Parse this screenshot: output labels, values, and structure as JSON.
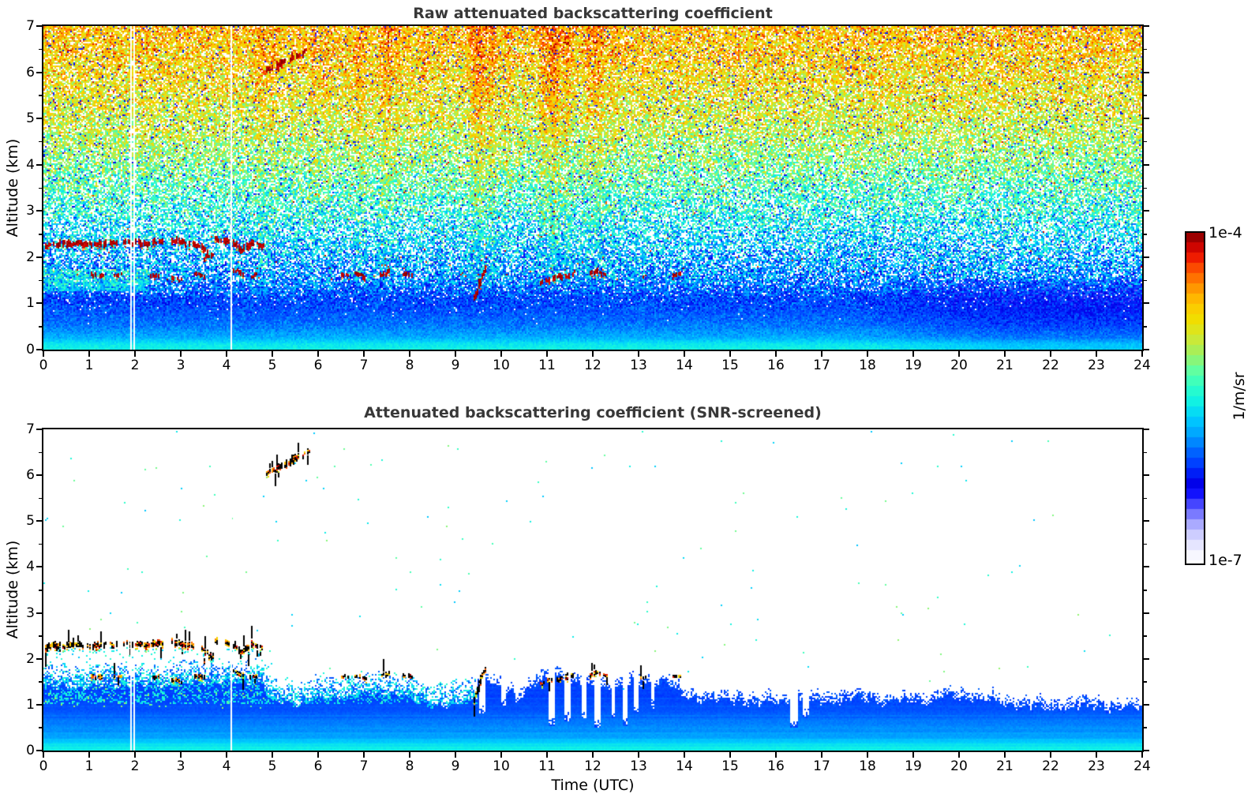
{
  "figure": {
    "title_color": "#383838",
    "axis_color": "#000000",
    "background": "#ffffff"
  },
  "panels": [
    {
      "id": "raw",
      "title": "Raw attenuated backscattering coefficient",
      "screened": false
    },
    {
      "id": "screened",
      "title": "Attenuated backscattering coefficient (SNR-screened)",
      "screened": true
    }
  ],
  "axes": {
    "x": {
      "label": "Time (UTC)",
      "min": 0,
      "max": 24,
      "tick_labels": [
        "0",
        "1",
        "2",
        "3",
        "4",
        "5",
        "6",
        "7",
        "8",
        "9",
        "10",
        "11",
        "12",
        "13",
        "14",
        "15",
        "16",
        "17",
        "18",
        "19",
        "20",
        "21",
        "22",
        "23",
        "24"
      ]
    },
    "y": {
      "label": "Altitude (km)",
      "min": 0,
      "max": 7,
      "tick_labels": [
        "0",
        "1",
        "2",
        "3",
        "4",
        "5",
        "6",
        "7"
      ],
      "minor_step": 0.5
    }
  },
  "colorbar": {
    "top_label": "1e-4",
    "bottom_label": "1e-7",
    "units_label": "1/m/sr",
    "segments": 32,
    "log_min": -7,
    "log_max": -4,
    "stops": [
      [
        0.0,
        "#ffffff"
      ],
      [
        0.04,
        "#ebebff"
      ],
      [
        0.08,
        "#ccccff"
      ],
      [
        0.12,
        "#9e9eff"
      ],
      [
        0.16,
        "#5a5aff"
      ],
      [
        0.2,
        "#1414ff"
      ],
      [
        0.24,
        "#0000e6"
      ],
      [
        0.28,
        "#0030ff"
      ],
      [
        0.33,
        "#0064ff"
      ],
      [
        0.38,
        "#00a0ff"
      ],
      [
        0.43,
        "#00ccff"
      ],
      [
        0.48,
        "#0ff0e6"
      ],
      [
        0.53,
        "#2effc8"
      ],
      [
        0.58,
        "#64ffa0"
      ],
      [
        0.63,
        "#a0f060"
      ],
      [
        0.68,
        "#d2e832"
      ],
      [
        0.73,
        "#f0e000"
      ],
      [
        0.78,
        "#ffc800"
      ],
      [
        0.83,
        "#ff9600"
      ],
      [
        0.88,
        "#ff5a00"
      ],
      [
        0.92,
        "#f01e00"
      ],
      [
        0.96,
        "#c80000"
      ],
      [
        1.0,
        "#800000"
      ]
    ]
  },
  "chart_data": {
    "type": "heatmap",
    "x_range_utc": [
      0,
      24
    ],
    "altitude_range_km": [
      0,
      7
    ],
    "value_scale": {
      "units": "1/m/sr",
      "log10_min": -7,
      "log10_max": -4
    },
    "data_gaps_utc": [
      1.9,
      1.97,
      4.08
    ],
    "raw_noise_profile": [
      [
        7.0,
        -4.65,
        0.32,
        0.17
      ],
      [
        6.0,
        -4.78,
        0.33,
        0.2
      ],
      [
        5.0,
        -4.95,
        0.34,
        0.23
      ],
      [
        4.0,
        -5.2,
        0.35,
        0.28
      ],
      [
        3.0,
        -5.5,
        0.36,
        0.33
      ],
      [
        2.5,
        -5.65,
        0.36,
        0.35
      ],
      [
        2.0,
        -5.8,
        0.38,
        0.3
      ],
      [
        1.6,
        -5.88,
        0.36,
        0.22
      ],
      [
        1.3,
        -6.0,
        0.3,
        0.1
      ],
      [
        1.1,
        -6.1,
        0.2,
        0.04
      ],
      [
        0.8,
        -6.05,
        0.12,
        0.01
      ],
      [
        0.5,
        -5.95,
        0.1,
        0.0
      ],
      [
        0.25,
        -5.8,
        0.08,
        0.0
      ],
      [
        0.12,
        -5.6,
        0.06,
        0.0
      ],
      [
        0.0,
        -5.55,
        0.05,
        0.0
      ]
    ],
    "raw_streak_columns": [
      [
        4.75,
        0.08,
        0.3
      ],
      [
        5.0,
        0.05,
        0.2
      ],
      [
        5.9,
        0.05,
        0.22
      ],
      [
        6.2,
        0.05,
        0.15
      ],
      [
        6.9,
        0.1,
        0.3
      ],
      [
        7.5,
        0.09,
        0.38
      ],
      [
        7.75,
        0.05,
        0.2
      ],
      [
        8.3,
        0.05,
        0.18
      ],
      [
        9.5,
        0.13,
        0.5
      ],
      [
        9.8,
        0.07,
        0.3
      ],
      [
        10.15,
        0.05,
        0.2
      ],
      [
        10.9,
        0.07,
        0.3
      ],
      [
        11.15,
        0.1,
        0.55
      ],
      [
        11.45,
        0.07,
        0.35
      ],
      [
        11.9,
        0.05,
        0.28
      ],
      [
        12.1,
        0.08,
        0.33
      ],
      [
        12.45,
        0.05,
        0.2
      ],
      [
        13.1,
        0.04,
        0.15
      ]
    ],
    "clouds": [
      {
        "t0": 0.05,
        "t1": 0.5,
        "a0": 2.25,
        "a1": 2.3,
        "th": 0.11,
        "kind": "deck"
      },
      {
        "t0": 0.5,
        "t1": 0.95,
        "a0": 2.3,
        "a1": 2.27,
        "th": 0.1,
        "kind": "deck"
      },
      {
        "t0": 1.0,
        "t1": 1.35,
        "a0": 2.28,
        "a1": 2.3,
        "th": 0.1,
        "kind": "deck"
      },
      {
        "t0": 1.45,
        "t1": 1.6,
        "a0": 2.3,
        "a1": 2.28,
        "th": 0.09,
        "kind": "deck"
      },
      {
        "t0": 1.75,
        "t1": 2.15,
        "a0": 2.33,
        "a1": 2.3,
        "th": 0.1,
        "kind": "deck"
      },
      {
        "t0": 2.2,
        "t1": 2.6,
        "a0": 2.3,
        "a1": 2.33,
        "th": 0.1,
        "kind": "deck"
      },
      {
        "t0": 2.8,
        "t1": 3.1,
        "a0": 2.35,
        "a1": 2.3,
        "th": 0.11,
        "kind": "deck"
      },
      {
        "t0": 3.15,
        "t1": 3.45,
        "a0": 2.3,
        "a1": 2.25,
        "th": 0.1,
        "kind": "deck"
      },
      {
        "t0": 3.45,
        "t1": 3.65,
        "a0": 2.2,
        "a1": 2.05,
        "th": 0.11,
        "kind": "deck"
      },
      {
        "t0": 3.5,
        "t1": 3.7,
        "a0": 1.98,
        "a1": 2.05,
        "th": 0.1,
        "kind": "deck"
      },
      {
        "t0": 3.75,
        "t1": 4.05,
        "a0": 2.4,
        "a1": 2.35,
        "th": 0.11,
        "kind": "deck"
      },
      {
        "t0": 4.1,
        "t1": 4.3,
        "a0": 2.35,
        "a1": 2.15,
        "th": 0.12,
        "kind": "deck"
      },
      {
        "t0": 4.3,
        "t1": 4.55,
        "a0": 2.1,
        "a1": 2.3,
        "th": 0.11,
        "kind": "deck"
      },
      {
        "t0": 4.55,
        "t1": 4.8,
        "a0": 2.33,
        "a1": 2.22,
        "th": 0.09,
        "kind": "deck"
      },
      {
        "t0": 1.05,
        "t1": 1.3,
        "a0": 1.62,
        "a1": 1.58,
        "th": 0.07,
        "kind": "frag"
      },
      {
        "t0": 1.55,
        "t1": 1.7,
        "a0": 1.6,
        "a1": 1.62,
        "th": 0.06,
        "kind": "frag"
      },
      {
        "t0": 2.3,
        "t1": 2.5,
        "a0": 1.57,
        "a1": 1.6,
        "th": 0.07,
        "kind": "frag"
      },
      {
        "t0": 2.8,
        "t1": 3.0,
        "a0": 1.55,
        "a1": 1.5,
        "th": 0.07,
        "kind": "frag"
      },
      {
        "t0": 3.3,
        "t1": 3.5,
        "a0": 1.63,
        "a1": 1.6,
        "th": 0.07,
        "kind": "frag"
      },
      {
        "t0": 4.15,
        "t1": 4.35,
        "a0": 1.72,
        "a1": 1.65,
        "th": 0.07,
        "kind": "frag"
      },
      {
        "t0": 4.5,
        "t1": 4.65,
        "a0": 1.58,
        "a1": 1.62,
        "th": 0.06,
        "kind": "frag"
      },
      {
        "t0": 6.5,
        "t1": 6.65,
        "a0": 1.62,
        "a1": 1.6,
        "th": 0.06,
        "kind": "frag"
      },
      {
        "t0": 6.8,
        "t1": 7.05,
        "a0": 1.63,
        "a1": 1.58,
        "th": 0.07,
        "kind": "frag"
      },
      {
        "t0": 7.35,
        "t1": 7.55,
        "a0": 1.6,
        "a1": 1.67,
        "th": 0.08,
        "kind": "frag"
      },
      {
        "t0": 7.85,
        "t1": 8.05,
        "a0": 1.63,
        "a1": 1.6,
        "th": 0.06,
        "kind": "frag"
      },
      {
        "t0": 9.4,
        "t1": 9.55,
        "a0": 1.1,
        "a1": 1.45,
        "th": 0.12,
        "kind": "frag"
      },
      {
        "t0": 9.5,
        "t1": 9.65,
        "a0": 1.5,
        "a1": 1.75,
        "th": 0.1,
        "kind": "frag"
      },
      {
        "t0": 10.85,
        "t1": 11.05,
        "a0": 1.45,
        "a1": 1.52,
        "th": 0.08,
        "kind": "frag"
      },
      {
        "t0": 11.1,
        "t1": 11.35,
        "a0": 1.52,
        "a1": 1.6,
        "th": 0.08,
        "kind": "frag"
      },
      {
        "t0": 11.4,
        "t1": 11.6,
        "a0": 1.58,
        "a1": 1.66,
        "th": 0.09,
        "kind": "frag"
      },
      {
        "t0": 11.9,
        "t1": 12.1,
        "a0": 1.62,
        "a1": 1.7,
        "th": 0.08,
        "kind": "frag"
      },
      {
        "t0": 12.15,
        "t1": 12.3,
        "a0": 1.68,
        "a1": 1.62,
        "th": 0.06,
        "kind": "frag"
      },
      {
        "t0": 13.05,
        "t1": 13.15,
        "a0": 1.57,
        "a1": 1.6,
        "th": 0.05,
        "kind": "frag"
      },
      {
        "t0": 13.75,
        "t1": 13.9,
        "a0": 1.6,
        "a1": 1.63,
        "th": 0.06,
        "kind": "frag"
      },
      {
        "t0": 4.87,
        "t1": 5.1,
        "a0": 6.05,
        "a1": 6.12,
        "th": 0.08,
        "kind": "cirrus"
      },
      {
        "t0": 5.1,
        "t1": 5.45,
        "a0": 6.12,
        "a1": 6.33,
        "th": 0.13,
        "kind": "cirrus"
      },
      {
        "t0": 5.45,
        "t1": 5.8,
        "a0": 6.33,
        "a1": 6.5,
        "th": 0.1,
        "kind": "cirrus"
      }
    ],
    "screened_bl_top_km": [
      [
        0,
        1.8
      ],
      [
        0.5,
        1.85
      ],
      [
        1,
        1.8
      ],
      [
        1.5,
        1.9
      ],
      [
        2,
        1.85
      ],
      [
        2.5,
        1.9
      ],
      [
        3,
        1.85
      ],
      [
        3.5,
        1.95
      ],
      [
        4,
        1.9
      ],
      [
        4.5,
        1.95
      ],
      [
        4.8,
        1.9
      ],
      [
        5,
        1.45
      ],
      [
        5.3,
        1.5
      ],
      [
        5.6,
        1.45
      ],
      [
        6,
        1.55
      ],
      [
        6.5,
        1.6
      ],
      [
        7,
        1.65
      ],
      [
        7.5,
        1.7
      ],
      [
        8,
        1.55
      ],
      [
        8.5,
        1.45
      ],
      [
        9,
        1.4
      ],
      [
        9.3,
        1.55
      ],
      [
        9.6,
        1.75
      ],
      [
        10,
        1.45
      ],
      [
        10.4,
        1.35
      ],
      [
        10.8,
        1.6
      ],
      [
        11.2,
        1.75
      ],
      [
        11.6,
        1.65
      ],
      [
        12,
        1.55
      ],
      [
        12.4,
        1.5
      ],
      [
        12.8,
        1.55
      ],
      [
        13.2,
        1.6
      ],
      [
        13.6,
        1.65
      ],
      [
        14,
        1.3
      ],
      [
        14.5,
        1.25
      ],
      [
        15,
        1.2
      ],
      [
        15.5,
        1.2
      ],
      [
        16,
        1.15
      ],
      [
        16.5,
        1.2
      ],
      [
        17,
        1.2
      ],
      [
        17.5,
        1.25
      ],
      [
        18,
        1.25
      ],
      [
        18.5,
        1.2
      ],
      [
        19,
        1.2
      ],
      [
        19.5,
        1.25
      ],
      [
        20,
        1.3
      ],
      [
        20.5,
        1.25
      ],
      [
        21,
        1.15
      ],
      [
        21.5,
        1.1
      ],
      [
        22,
        1.05
      ],
      [
        22.5,
        1.1
      ],
      [
        23,
        1.1
      ],
      [
        23.5,
        1.05
      ],
      [
        24,
        1.05
      ]
    ],
    "screened_bl_profile": [
      [
        0.0,
        -5.55
      ],
      [
        0.12,
        -5.62
      ],
      [
        0.3,
        -5.85
      ],
      [
        0.6,
        -5.95
      ],
      [
        0.9,
        -6.05
      ],
      [
        1.2,
        -6.1
      ],
      [
        1.6,
        -6.12
      ],
      [
        2.0,
        -6.1
      ]
    ],
    "screened_rain_notches": [
      [
        9.6,
        0.07,
        0.8
      ],
      [
        10.05,
        0.05,
        0.95
      ],
      [
        10.35,
        0.04,
        1.0
      ],
      [
        11.1,
        0.08,
        0.55
      ],
      [
        11.45,
        0.06,
        0.65
      ],
      [
        11.8,
        0.05,
        0.7
      ],
      [
        12.1,
        0.08,
        0.5
      ],
      [
        12.45,
        0.05,
        0.7
      ],
      [
        12.7,
        0.06,
        0.55
      ],
      [
        12.95,
        0.05,
        0.8
      ],
      [
        13.3,
        0.04,
        0.9
      ],
      [
        16.4,
        0.1,
        0.5
      ],
      [
        16.65,
        0.06,
        0.7
      ]
    ]
  }
}
